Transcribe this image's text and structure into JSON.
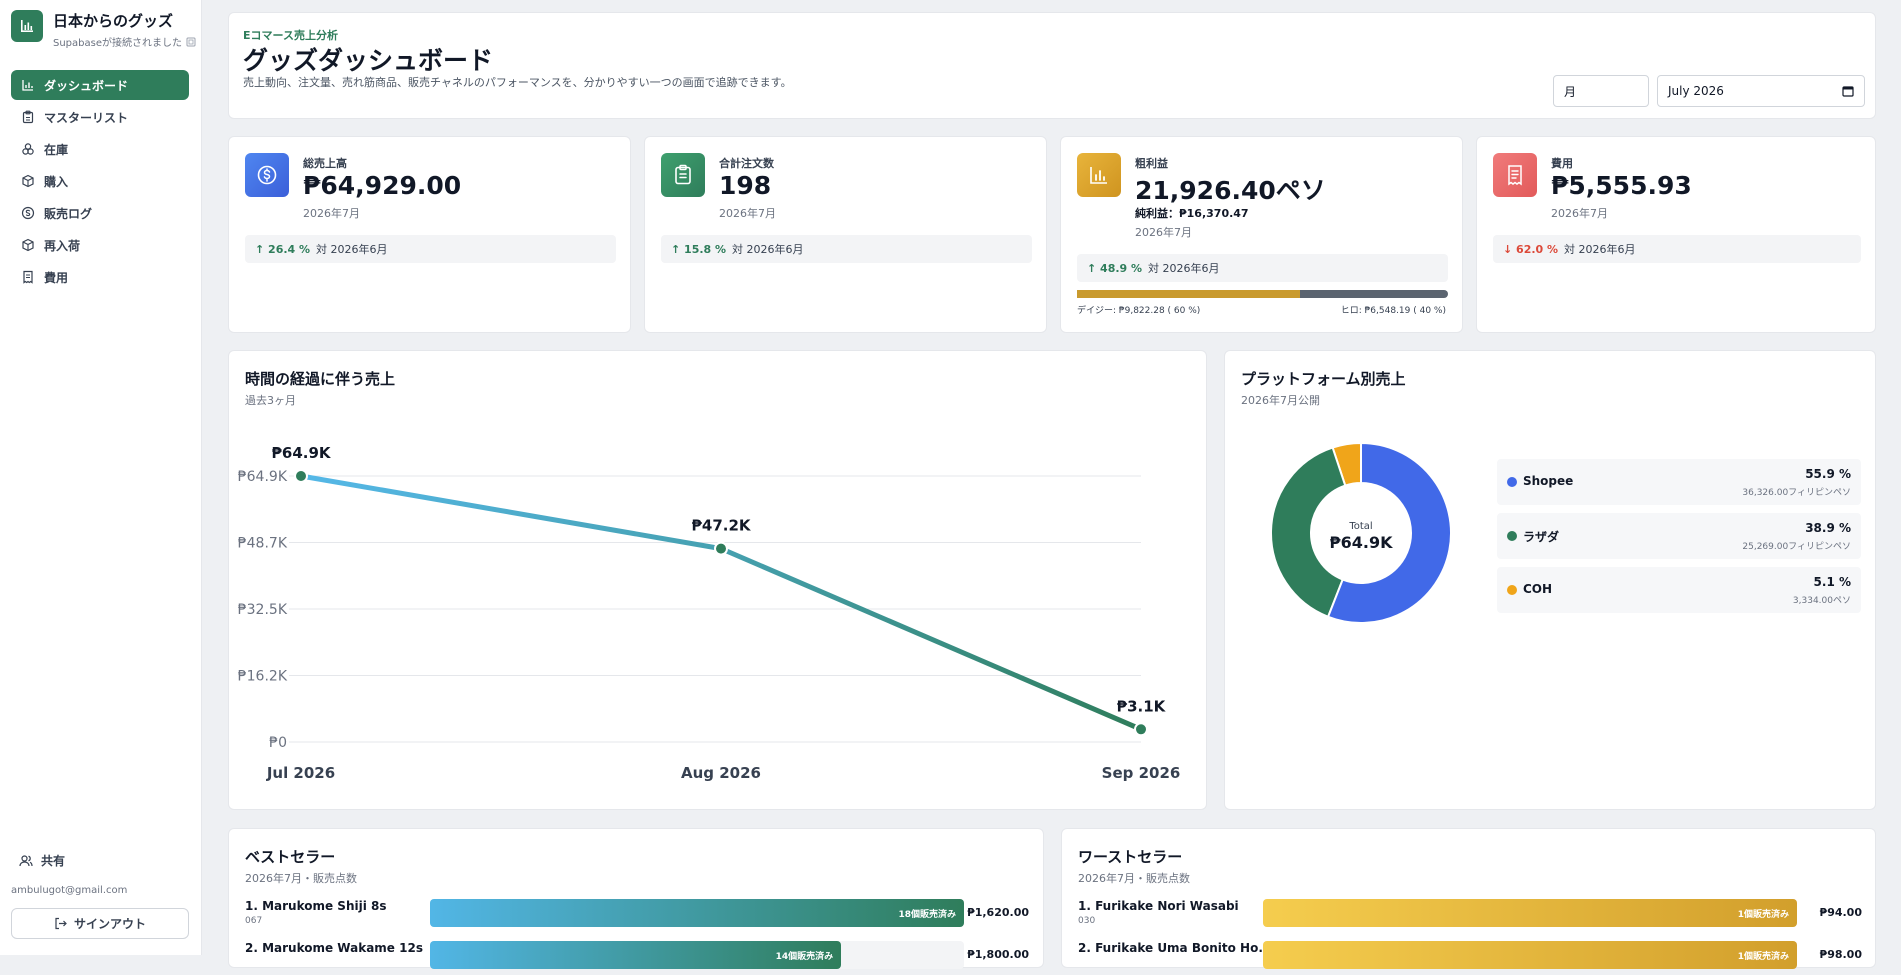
{
  "app": {
    "title": "日本からのグッズ",
    "subtitle": "Supabaseが接続されました",
    "user_email": "ambulugot@gmail.com",
    "share_label": "共有",
    "signout_label": "サインアウト"
  },
  "nav": [
    {
      "label": "ダッシュボード",
      "icon": "chart-icon",
      "active": true
    },
    {
      "label": "マスターリスト",
      "icon": "clipboard-icon",
      "active": false
    },
    {
      "label": "在庫",
      "icon": "boxes-icon",
      "active": false
    },
    {
      "label": "購入",
      "icon": "package-icon",
      "active": false
    },
    {
      "label": "販売ログ",
      "icon": "dollar-icon",
      "active": false
    },
    {
      "label": "再入荷",
      "icon": "package-icon",
      "active": false
    },
    {
      "label": "費用",
      "icon": "receipt-icon",
      "active": false
    }
  ],
  "header": {
    "eyebrow": "Eコマース売上分析",
    "title": "グッズダッシュボード",
    "description": "売上動向、注文量、売れ筋商品、販売チャネルのパフォーマンスを、分かりやすい一つの画面で追跡できます。",
    "period_value": "月",
    "date_value": "July 2026"
  },
  "kpis": {
    "sales": {
      "label": "総売上高",
      "value": "₱64,929.00",
      "period": "2026年7月",
      "change": "26.4 %",
      "compare": "対 2026年6月",
      "color": "#4370e6"
    },
    "orders": {
      "label": "合計注文数",
      "value": "198",
      "period": "2026年7月",
      "change": "15.8 %",
      "compare": "対 2026年6月",
      "color": "#2f8a5e"
    },
    "profit": {
      "label": "粗利益",
      "value": "21,926.40ペソ",
      "net": "純利益：₱16,370.47",
      "period": "2026年7月",
      "change": "48.9 %",
      "compare": "対 2026年6月",
      "split_left": "デイジー: ₱9,822.28 ( 60 %)",
      "split_right": "ヒロ: ₱6,548.19 ( 40 %)",
      "split_fraction": 0.6,
      "color": "#d9a52b"
    },
    "expenses": {
      "label": "費用",
      "value": "₱5,555.93",
      "period": "2026年7月",
      "change": "62.0 %",
      "compare": "対 2026年6月",
      "color": "#ec6b6b"
    }
  },
  "sales_chart": {
    "title": "時間の経過に伴う売上",
    "subtitle": "過去3ヶ月"
  },
  "platform_chart": {
    "title": "プラットフォーム別売上",
    "subtitle": "2026年7月公開",
    "center_label": "Total",
    "center_value": "₱64.9K",
    "items": [
      {
        "name": "Shopee",
        "pct": "55.9 %",
        "amount": "36,326.00フィリピンペソ",
        "color": "#4169e8"
      },
      {
        "name": "ラザダ",
        "pct": "38.9 %",
        "amount": "25,269.00フィリピンペソ",
        "color": "#2f7d5b"
      },
      {
        "name": "COH",
        "pct": "5.1 %",
        "amount": "3,334.00ペソ",
        "color": "#f0a51a"
      }
    ]
  },
  "chart_data": [
    {
      "type": "line",
      "title": "時間の経過に伴う売上",
      "x": [
        "Jul 2026",
        "Aug 2026",
        "Sep 2026"
      ],
      "values": [
        64929,
        47200,
        3100
      ],
      "data_labels": [
        "₱64.9K",
        "₱47.2K",
        "₱3.1K"
      ],
      "y_ticks": [
        "₱0",
        "₱16.2K",
        "₱32.5K",
        "₱48.7K",
        "₱64.9K"
      ],
      "ylim": [
        0,
        64929
      ],
      "grid": true
    },
    {
      "type": "pie",
      "title": "プラットフォーム別売上",
      "labels": [
        "Shopee",
        "ラザダ",
        "COH"
      ],
      "values": [
        55.9,
        38.9,
        5.1
      ],
      "colors": [
        "#4169e8",
        "#2f7d5b",
        "#f0a51a"
      ]
    }
  ],
  "best_sellers": {
    "title": "ベストセラー",
    "subtitle": "2026年7月・販売点数",
    "items": [
      {
        "name": "1. Marukome Shiji 8s",
        "sku": "067",
        "bar_label": "18個販売済み",
        "fraction": 1.0,
        "price": "₱1,620.00"
      },
      {
        "name": "2. Marukome Wakame 12s",
        "sku": "",
        "bar_label": "14個販売済み",
        "fraction": 0.77,
        "price": "₱1,800.00"
      }
    ]
  },
  "worst_sellers": {
    "title": "ワーストセラー",
    "subtitle": "2026年7月・販売点数",
    "items": [
      {
        "name": "1. Furikake Nori Wasabi",
        "sku": "030",
        "bar_label": "1個販売済み",
        "fraction": 1.0,
        "price": "₱94.00"
      },
      {
        "name": "2. Furikake Uma Bonito Ho...",
        "sku": "",
        "bar_label": "1個販売済み",
        "fraction": 1.0,
        "price": "₱98.00"
      }
    ]
  }
}
